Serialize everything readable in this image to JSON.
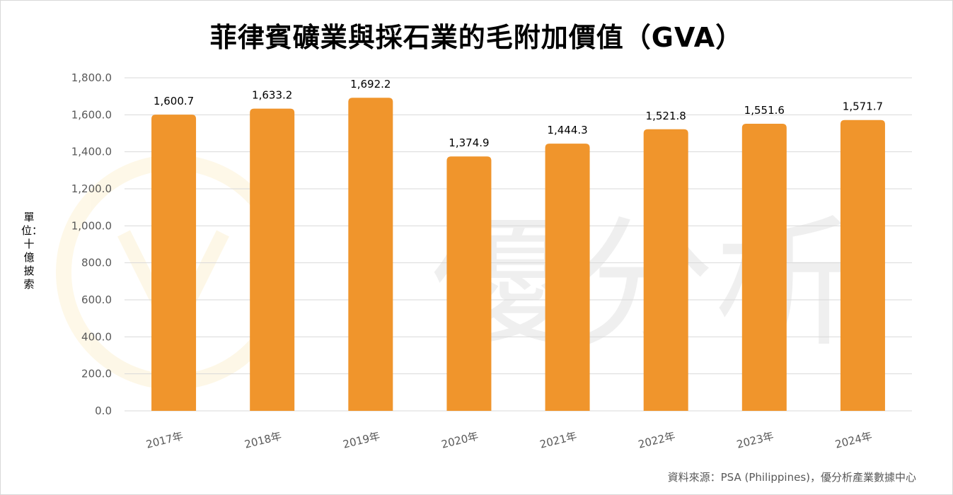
{
  "chart_data": {
    "type": "bar",
    "title": "菲律賓礦業與採石業的毛附加價值（GVA）",
    "ylabel": "單位：十億披索",
    "xlabel": "",
    "categories": [
      "2017年",
      "2018年",
      "2019年",
      "2020年",
      "2021年",
      "2022年",
      "2023年",
      "2024年"
    ],
    "values": [
      1600.7,
      1633.2,
      1692.2,
      1374.9,
      1444.3,
      1521.8,
      1551.6,
      1571.7
    ],
    "value_labels": [
      "1,600.7",
      "1,633.2",
      "1,692.2",
      "1,374.9",
      "1,444.3",
      "1,521.8",
      "1,551.6",
      "1,571.7"
    ],
    "ylim": [
      0,
      1800
    ],
    "yticks": [
      0,
      200,
      400,
      600,
      800,
      1000,
      1200,
      1400,
      1600,
      1800
    ],
    "ytick_labels": [
      "0.0",
      "200.0",
      "400.0",
      "600.0",
      "800.0",
      "1,000.0",
      "1,200.0",
      "1,400.0",
      "1,600.0",
      "1,800.0"
    ],
    "grid": true,
    "legend": "none",
    "bar_color": "#f0952c",
    "grid_color": "#d9d9d9",
    "watermark_text": "優分析"
  },
  "source": "資料來源：PSA (Philippines)，優分析產業數據中心"
}
